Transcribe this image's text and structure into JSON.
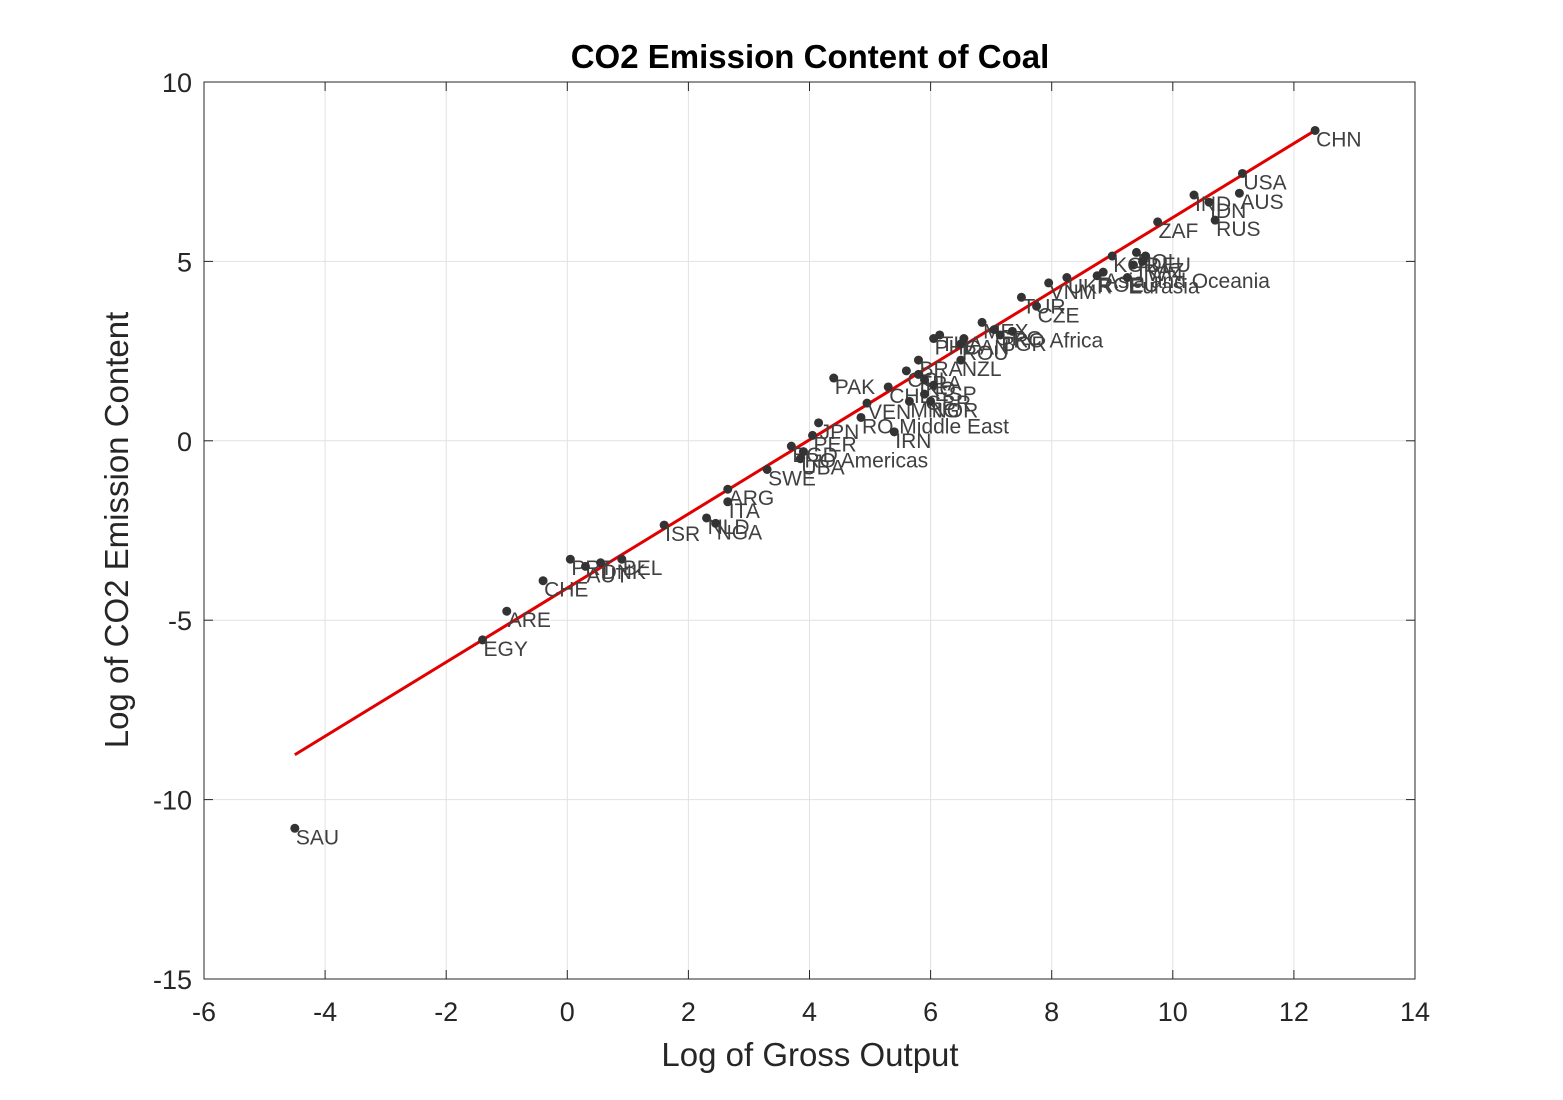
{
  "chart_data": {
    "type": "scatter",
    "title": "CO2 Emission Content of Coal",
    "xlabel": "Log of Gross Output",
    "ylabel": "Log of CO2 Emission Content",
    "xlim": [
      -6,
      14
    ],
    "ylim": [
      -15,
      10
    ],
    "xticks": [
      -6,
      -4,
      -2,
      0,
      2,
      4,
      6,
      8,
      10,
      12,
      14
    ],
    "yticks": [
      -15,
      -10,
      -5,
      0,
      5,
      10
    ],
    "grid": true,
    "point_color": "#333333",
    "fit_color": "#e00000",
    "fit_line": {
      "x": [
        -4.5,
        12.35
      ],
      "y": [
        -8.75,
        8.65
      ]
    },
    "points": [
      {
        "label": "CHN",
        "x": 12.35,
        "y": 8.65
      },
      {
        "label": "USA",
        "x": 11.15,
        "y": 7.45
      },
      {
        "label": "AUS",
        "x": 11.1,
        "y": 6.9
      },
      {
        "label": "IND",
        "x": 10.35,
        "y": 6.85
      },
      {
        "label": "IDN",
        "x": 10.6,
        "y": 6.65
      },
      {
        "label": "RUS",
        "x": 10.7,
        "y": 6.15
      },
      {
        "label": "ZAF",
        "x": 9.75,
        "y": 6.1
      },
      {
        "label": "KOR",
        "x": 9.0,
        "y": 5.15
      },
      {
        "label": "POL",
        "x": 9.4,
        "y": 5.25
      },
      {
        "label": "DEU",
        "x": 9.55,
        "y": 5.15
      },
      {
        "label": "KAZ",
        "x": 9.5,
        "y": 5.0
      },
      {
        "label": "TWN",
        "x": 9.35,
        "y": 4.9
      },
      {
        "label": "Asia and Oceania",
        "x": 8.85,
        "y": 4.7
      },
      {
        "label": "ROEU",
        "x": 8.75,
        "y": 4.6
      },
      {
        "label": "Eurasia",
        "x": 9.25,
        "y": 4.55
      },
      {
        "label": "UKR",
        "x": 8.25,
        "y": 4.55
      },
      {
        "label": "VNM",
        "x": 7.95,
        "y": 4.4
      },
      {
        "label": "TUR",
        "x": 7.5,
        "y": 4.0
      },
      {
        "label": "CZE",
        "x": 7.75,
        "y": 3.75
      },
      {
        "label": "MEX",
        "x": 6.85,
        "y": 3.3
      },
      {
        "label": "GRC",
        "x": 7.05,
        "y": 3.1
      },
      {
        "label": "RO Africa",
        "x": 7.35,
        "y": 3.05
      },
      {
        "label": "BGR",
        "x": 7.15,
        "y": 2.95
      },
      {
        "label": "THA",
        "x": 6.15,
        "y": 2.95
      },
      {
        "label": "PHL",
        "x": 6.05,
        "y": 2.85
      },
      {
        "label": "CAN",
        "x": 6.55,
        "y": 2.85
      },
      {
        "label": "ROU",
        "x": 6.5,
        "y": 2.7
      },
      {
        "label": "BRA",
        "x": 5.8,
        "y": 2.25
      },
      {
        "label": "NZL",
        "x": 6.5,
        "y": 2.25
      },
      {
        "label": "COL",
        "x": 5.6,
        "y": 1.95
      },
      {
        "label": "FRA",
        "x": 5.8,
        "y": 1.85
      },
      {
        "label": "KO",
        "x": 5.9,
        "y": 1.7
      },
      {
        "label": "PAK",
        "x": 4.4,
        "y": 1.75
      },
      {
        "label": "CHL",
        "x": 5.3,
        "y": 1.5
      },
      {
        "label": "ESP",
        "x": 6.05,
        "y": 1.55
      },
      {
        "label": "GBR",
        "x": 5.9,
        "y": 1.3
      },
      {
        "label": "MNG",
        "x": 5.65,
        "y": 1.1
      },
      {
        "label": "NOR",
        "x": 6.0,
        "y": 1.1
      },
      {
        "label": "VEN",
        "x": 4.95,
        "y": 1.05
      },
      {
        "label": "JPN",
        "x": 4.15,
        "y": 0.5
      },
      {
        "label": "RO Middle East",
        "x": 4.85,
        "y": 0.65
      },
      {
        "label": "IRN",
        "x": 5.4,
        "y": 0.25
      },
      {
        "label": "PER",
        "x": 4.05,
        "y": 0.15
      },
      {
        "label": "BGD",
        "x": 3.7,
        "y": -0.15
      },
      {
        "label": "RO Americas",
        "x": 3.9,
        "y": -0.3
      },
      {
        "label": "UBA",
        "x": 3.85,
        "y": -0.5
      },
      {
        "label": "SWE",
        "x": 3.3,
        "y": -0.8
      },
      {
        "label": "ARG",
        "x": 2.65,
        "y": -1.35
      },
      {
        "label": "ITA",
        "x": 2.65,
        "y": -1.7
      },
      {
        "label": "ISR",
        "x": 1.6,
        "y": -2.35
      },
      {
        "label": "NLD",
        "x": 2.3,
        "y": -2.15
      },
      {
        "label": "NGA",
        "x": 2.45,
        "y": -2.3
      },
      {
        "label": "PRT",
        "x": 0.05,
        "y": -3.3
      },
      {
        "label": "AUT",
        "x": 0.3,
        "y": -3.5
      },
      {
        "label": "DNK",
        "x": 0.55,
        "y": -3.4
      },
      {
        "label": "BEL",
        "x": 0.9,
        "y": -3.3
      },
      {
        "label": "CHE",
        "x": -0.4,
        "y": -3.9
      },
      {
        "label": "ARE",
        "x": -1.0,
        "y": -4.75
      },
      {
        "label": "EGY",
        "x": -1.4,
        "y": -5.55
      },
      {
        "label": "SAU",
        "x": -4.5,
        "y": -10.8
      }
    ]
  }
}
